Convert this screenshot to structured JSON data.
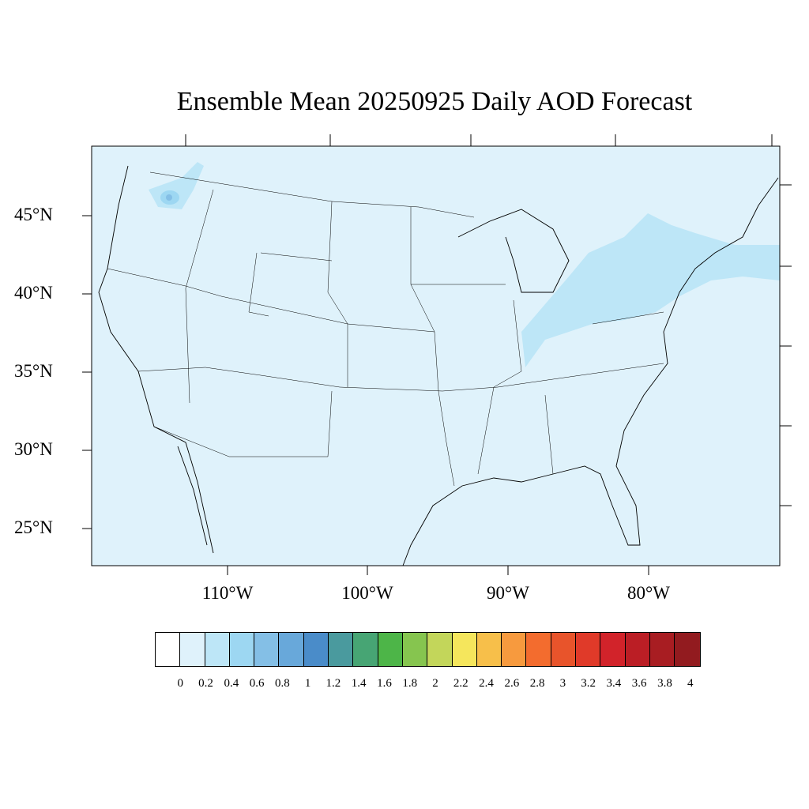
{
  "title": "Ensemble Mean 20250925 Daily AOD Forecast",
  "lat_labels": [
    "45°N",
    "40°N",
    "35°N",
    "30°N",
    "25°N"
  ],
  "lon_labels": [
    "110°W",
    "100°W",
    "90°W",
    "80°W"
  ],
  "colorbar": {
    "labels": [
      "0",
      "0.2",
      "0.4",
      "0.6",
      "0.8",
      "1",
      "1.2",
      "1.4",
      "1.6",
      "1.8",
      "2",
      "2.2",
      "2.4",
      "2.6",
      "2.8",
      "3",
      "3.2",
      "3.4",
      "3.6",
      "3.8",
      "4"
    ],
    "colors": [
      "#ffffff",
      "#dff2fb",
      "#bde6f7",
      "#9dd7f2",
      "#84bfe6",
      "#68a8da",
      "#4a8cc9",
      "#4a9a9e",
      "#47a574",
      "#4db548",
      "#86c54f",
      "#c3d65a",
      "#f5e65c",
      "#f7bf4a",
      "#f79a3e",
      "#f36c2e",
      "#e8542b",
      "#e03a29",
      "#d2232a",
      "#bb1e25",
      "#a81d22",
      "#921b1f"
    ]
  }
}
